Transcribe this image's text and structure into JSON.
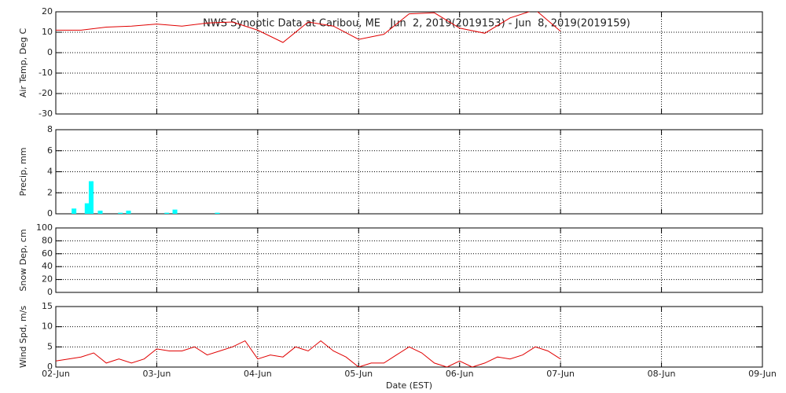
{
  "chart_data": [
    {
      "type": "line",
      "title": "NWS Synoptic Data at Caribou, ME   Jun  2, 2019(2019153) - Jun  8, 2019(2019159)",
      "ylabel": "Air Temp, Deg C",
      "color": "#e00000",
      "x": [
        0,
        0.25,
        0.5,
        0.75,
        1,
        1.25,
        1.5,
        1.75,
        2,
        2.25,
        2.5,
        2.75,
        3,
        3.25,
        3.5,
        3.75,
        4,
        4.25,
        4.5,
        4.75,
        5
      ],
      "values": [
        11,
        11,
        12.5,
        13,
        14,
        13,
        14.5,
        15,
        11,
        5,
        15,
        13,
        6.5,
        9,
        19,
        19.5,
        12,
        9.5,
        17,
        21,
        10.5
      ],
      "xlim": [
        0,
        7
      ],
      "xticks": [
        0,
        1,
        2,
        3,
        4,
        5,
        6,
        7
      ],
      "ylim": [
        -30,
        20
      ],
      "yticks": [
        -30,
        -20,
        -10,
        0,
        10,
        20
      ],
      "grid": true
    },
    {
      "type": "bar",
      "ylabel": "Precip, mm",
      "color": "#00ffff",
      "x": [
        0.18,
        0.31,
        0.35,
        0.44,
        0.64,
        0.72,
        1.1,
        1.18,
        1.6
      ],
      "values": [
        0.5,
        1.0,
        3.1,
        0.3,
        0.1,
        0.3,
        0.1,
        0.4,
        0.1
      ],
      "xlim": [
        0,
        7
      ],
      "xticks": [
        0,
        1,
        2,
        3,
        4,
        5,
        6,
        7
      ],
      "ylim": [
        0,
        8
      ],
      "yticks": [
        0,
        2,
        4,
        6,
        8
      ],
      "grid": true
    },
    {
      "type": "line",
      "ylabel": "Snow Dep, cm",
      "xlim": [
        0,
        7
      ],
      "xticks": [
        0,
        1,
        2,
        3,
        4,
        5,
        6,
        7
      ],
      "ylim": [
        0,
        100
      ],
      "yticks": [
        0,
        20,
        40,
        60,
        80,
        100
      ],
      "grid": true
    },
    {
      "type": "line",
      "ylabel": "Wind Spd, m/s",
      "xlabel": "Date (EST)",
      "color": "#e00000",
      "x": [
        0,
        0.125,
        0.25,
        0.375,
        0.5,
        0.625,
        0.75,
        0.875,
        1,
        1.125,
        1.25,
        1.375,
        1.5,
        1.625,
        1.75,
        1.875,
        2,
        2.125,
        2.25,
        2.375,
        2.5,
        2.625,
        2.75,
        2.875,
        3,
        3.125,
        3.25,
        3.375,
        3.5,
        3.625,
        3.75,
        3.875,
        4,
        4.125,
        4.25,
        4.375,
        4.5,
        4.625,
        4.75,
        4.875,
        5
      ],
      "values": [
        1.5,
        2,
        2.5,
        3.5,
        1,
        2,
        1,
        2,
        4.5,
        4,
        4,
        5,
        3,
        4,
        5,
        6.5,
        2,
        3,
        2.5,
        5,
        4,
        6.5,
        4,
        2.5,
        0,
        1,
        1,
        3,
        5,
        3.5,
        1,
        0,
        1.5,
        0,
        1,
        2.5,
        2,
        3,
        5,
        4,
        2
      ],
      "xlim": [
        0,
        7
      ],
      "xticks": [
        {
          "value": 0,
          "label": "02-Jun"
        },
        {
          "value": 1,
          "label": "03-Jun"
        },
        {
          "value": 2,
          "label": "04-Jun"
        },
        {
          "value": 3,
          "label": "05-Jun"
        },
        {
          "value": 4,
          "label": "06-Jun"
        },
        {
          "value": 5,
          "label": "07-Jun"
        },
        {
          "value": 6,
          "label": "08-Jun"
        },
        {
          "value": 7,
          "label": "09-Jun"
        }
      ],
      "ylim": [
        0,
        15
      ],
      "yticks": [
        0,
        5,
        10,
        15
      ],
      "grid": true
    }
  ]
}
